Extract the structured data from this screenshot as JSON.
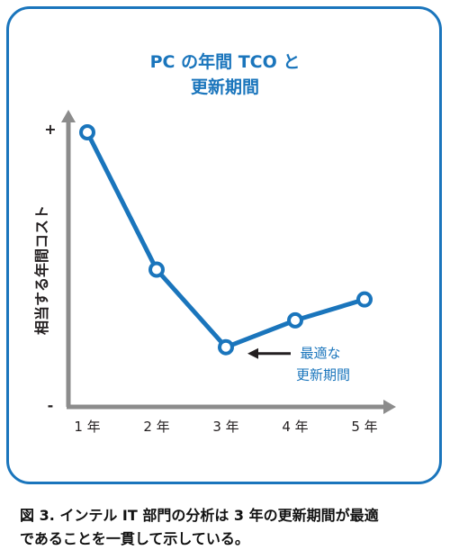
{
  "colors": {
    "accent": "#1a75bc",
    "axis": "#8c8c8c",
    "text": "#231f20"
  },
  "chart_data": {
    "type": "line",
    "title_lines": [
      "PC の年間 TCO と",
      "更新期間"
    ],
    "ylabel": "相当する年間コスト",
    "y_ticks": [
      "+",
      "-"
    ],
    "categories": [
      "1 年",
      "2 年",
      "3 年",
      "4 年",
      "5 年"
    ],
    "values": [
      92,
      46,
      20,
      29,
      36
    ],
    "ylim": [
      0,
      100
    ],
    "grid": false,
    "annotation": {
      "lines": [
        "最適な",
        "更新期間"
      ],
      "target_index": 2
    }
  },
  "caption": {
    "line1": "図 3. インテル IT 部門の分析は 3 年の更新期間が最適",
    "line2": "であることを一貫して示している。"
  }
}
